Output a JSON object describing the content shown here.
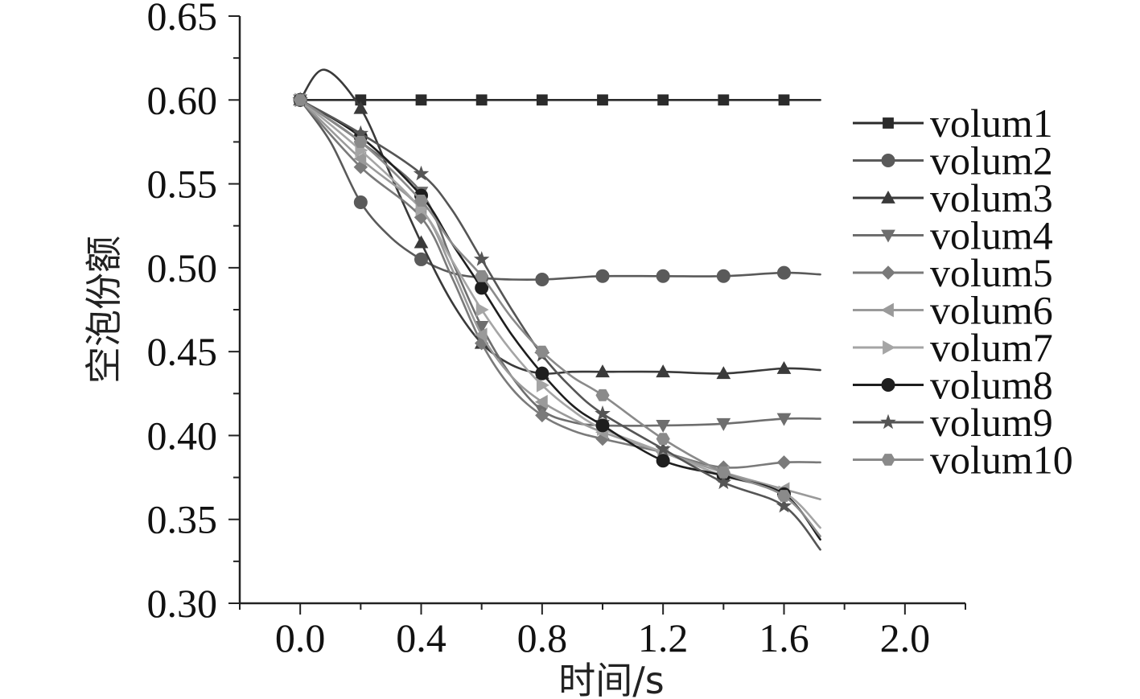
{
  "chart_data": {
    "type": "line",
    "title": "",
    "xlabel": "时间/s",
    "ylabel": "空泡份额",
    "xlim": [
      -0.2,
      2.2
    ],
    "ylim": [
      0.3,
      0.65
    ],
    "xticks": [
      0.0,
      0.4,
      0.8,
      1.2,
      1.6,
      2.0
    ],
    "xtick_labels": [
      "0.0",
      "0.4",
      "0.8",
      "1.2",
      "1.6",
      "2.0"
    ],
    "yticks": [
      0.3,
      0.35,
      0.4,
      0.45,
      0.5,
      0.55,
      0.6,
      0.65
    ],
    "ytick_labels": [
      "0.30",
      "0.35",
      "0.40",
      "0.45",
      "0.50",
      "0.55",
      "0.60",
      "0.65"
    ],
    "grid": false,
    "legend": "right",
    "series": [
      {
        "name": "volum1",
        "marker": "square",
        "color": "#2b2b2b",
        "x": [
          0.0,
          0.2,
          0.4,
          0.6,
          0.8,
          1.0,
          1.2,
          1.4,
          1.6,
          1.72
        ],
        "y": [
          0.6,
          0.6,
          0.6,
          0.6,
          0.6,
          0.6,
          0.6,
          0.6,
          0.6,
          0.6
        ]
      },
      {
        "name": "volum2",
        "marker": "circle",
        "color": "#5a5a5a",
        "x": [
          0.0,
          0.1,
          0.2,
          0.3,
          0.4,
          0.5,
          0.6,
          0.7,
          0.8,
          0.9,
          1.0,
          1.2,
          1.4,
          1.6,
          1.72
        ],
        "y": [
          0.6,
          0.575,
          0.539,
          0.518,
          0.505,
          0.497,
          0.494,
          0.493,
          0.493,
          0.494,
          0.495,
          0.495,
          0.495,
          0.497,
          0.496
        ]
      },
      {
        "name": "volum3",
        "marker": "triangle-up",
        "color": "#3a3a3a",
        "x": [
          0.0,
          0.08,
          0.2,
          0.3,
          0.4,
          0.5,
          0.6,
          0.7,
          0.8,
          0.9,
          1.0,
          1.2,
          1.4,
          1.6,
          1.72
        ],
        "y": [
          0.6,
          0.618,
          0.595,
          0.555,
          0.515,
          0.48,
          0.455,
          0.442,
          0.437,
          0.438,
          0.438,
          0.438,
          0.437,
          0.44,
          0.439
        ]
      },
      {
        "name": "volum4",
        "marker": "triangle-down",
        "color": "#6e6e6e",
        "x": [
          0.0,
          0.2,
          0.4,
          0.5,
          0.6,
          0.7,
          0.8,
          0.9,
          1.0,
          1.2,
          1.4,
          1.6,
          1.72
        ],
        "y": [
          0.6,
          0.575,
          0.545,
          0.505,
          0.465,
          0.435,
          0.415,
          0.408,
          0.406,
          0.406,
          0.407,
          0.41,
          0.41
        ]
      },
      {
        "name": "volum5",
        "marker": "diamond",
        "color": "#7a7a7a",
        "x": [
          0.0,
          0.2,
          0.4,
          0.5,
          0.6,
          0.7,
          0.8,
          0.9,
          1.0,
          1.2,
          1.4,
          1.6,
          1.72
        ],
        "y": [
          0.6,
          0.56,
          0.53,
          0.495,
          0.455,
          0.428,
          0.412,
          0.403,
          0.398,
          0.39,
          0.381,
          0.384,
          0.384
        ]
      },
      {
        "name": "volum6",
        "marker": "triangle-left",
        "color": "#9a9a9a",
        "x": [
          0.0,
          0.2,
          0.4,
          0.5,
          0.6,
          0.7,
          0.8,
          0.9,
          1.0,
          1.2,
          1.4,
          1.6,
          1.72
        ],
        "y": [
          0.6,
          0.565,
          0.535,
          0.5,
          0.46,
          0.435,
          0.42,
          0.41,
          0.402,
          0.39,
          0.378,
          0.368,
          0.362
        ]
      },
      {
        "name": "volum7",
        "marker": "triangle-right",
        "color": "#a5a5a5",
        "x": [
          0.0,
          0.2,
          0.4,
          0.5,
          0.6,
          0.7,
          0.8,
          0.9,
          1.0,
          1.2,
          1.4,
          1.6,
          1.72
        ],
        "y": [
          0.6,
          0.57,
          0.535,
          0.505,
          0.475,
          0.45,
          0.43,
          0.415,
          0.404,
          0.39,
          0.376,
          0.366,
          0.345
        ]
      },
      {
        "name": "volum8",
        "marker": "circle",
        "color": "#1e1e1e",
        "x": [
          0.0,
          0.2,
          0.4,
          0.5,
          0.6,
          0.7,
          0.8,
          0.9,
          1.0,
          1.2,
          1.4,
          1.6,
          1.72
        ],
        "y": [
          0.6,
          0.578,
          0.543,
          0.515,
          0.488,
          0.46,
          0.437,
          0.418,
          0.406,
          0.385,
          0.376,
          0.365,
          0.338
        ]
      },
      {
        "name": "volum9",
        "marker": "star",
        "color": "#555555",
        "x": [
          0.0,
          0.2,
          0.4,
          0.5,
          0.6,
          0.7,
          0.8,
          0.9,
          1.0,
          1.2,
          1.4,
          1.6,
          1.72
        ],
        "y": [
          0.6,
          0.58,
          0.556,
          0.535,
          0.505,
          0.475,
          0.448,
          0.428,
          0.413,
          0.392,
          0.372,
          0.358,
          0.332
        ]
      },
      {
        "name": "volum10",
        "marker": "hexagon",
        "color": "#8a8a8a",
        "x": [
          0.0,
          0.2,
          0.4,
          0.5,
          0.6,
          0.7,
          0.8,
          0.9,
          1.0,
          1.2,
          1.4,
          1.6,
          1.72
        ],
        "y": [
          0.6,
          0.575,
          0.54,
          0.515,
          0.495,
          0.47,
          0.45,
          0.435,
          0.424,
          0.398,
          0.378,
          0.364,
          0.34
        ]
      }
    ]
  }
}
